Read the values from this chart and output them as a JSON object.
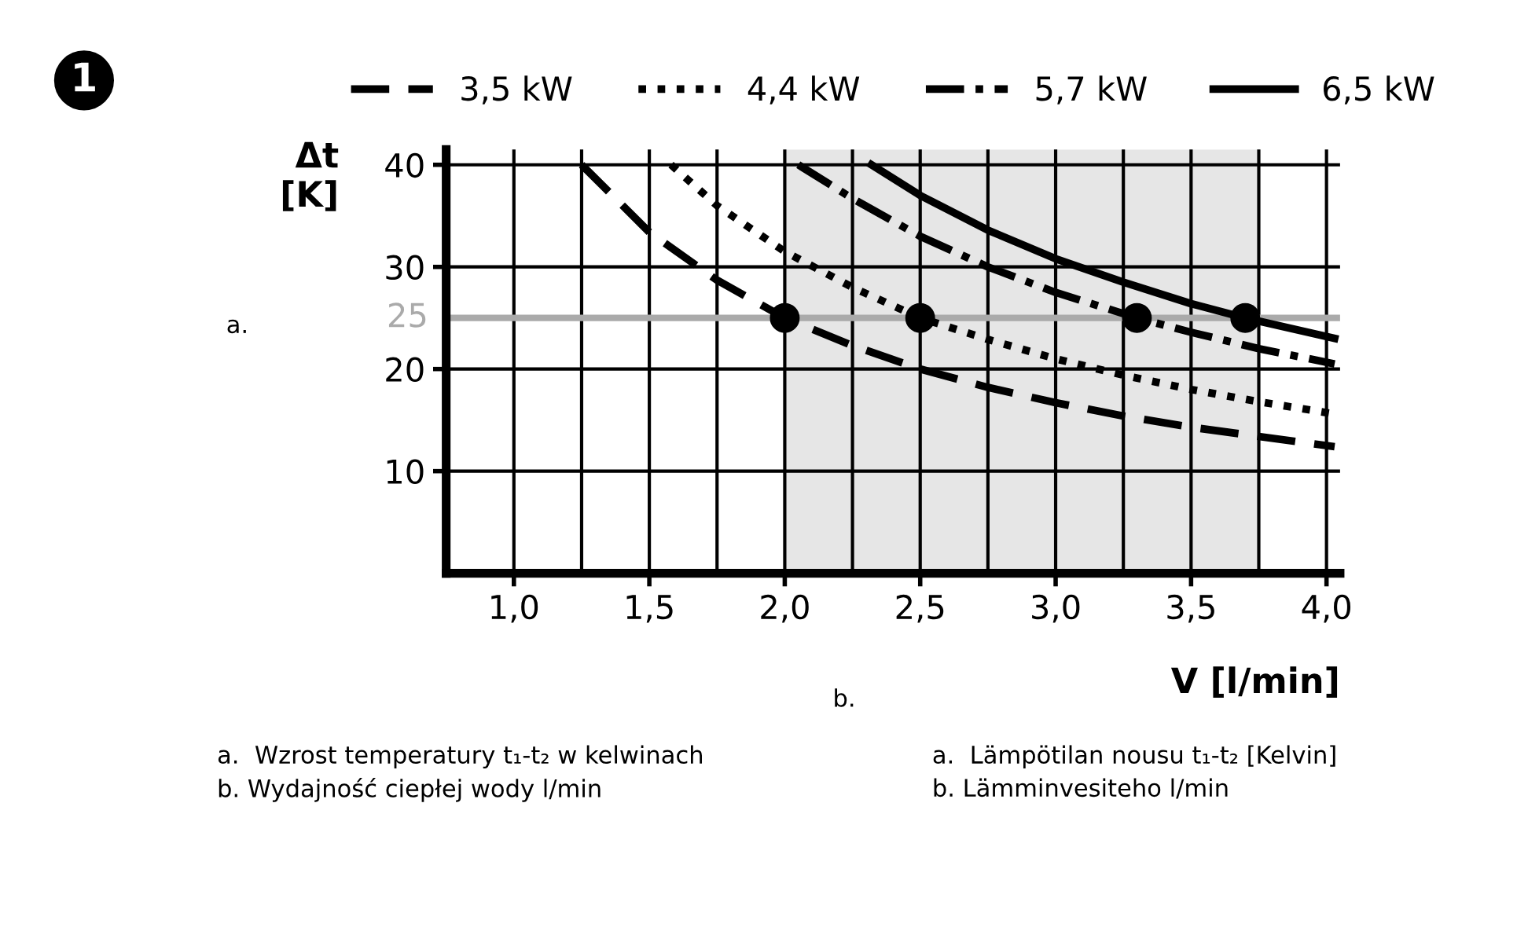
{
  "chart_data": {
    "type": "line",
    "xlabel": "V [l/min]",
    "ylabel": "Δt\n[K]",
    "annotations": [
      "1",
      "a.",
      "b.",
      "a.  Wzrost temperatury t₁-t₂ w kelwinach",
      "b. Wydajność ciepłej wody l/min",
      "a.  Lämpötilan nousu t₁-t₂ [Kelvin]",
      "b. Lämminvesiteho l/min"
    ],
    "series": [
      {
        "name": "3,5 kW",
        "color": "#000000",
        "line_style": "dashed",
        "x": [
          1.25,
          1.5,
          1.75,
          2.0,
          2.25,
          2.5,
          2.75,
          3.0,
          3.25,
          3.5,
          3.75,
          4.03
        ],
        "values": [
          40,
          33.4,
          28.7,
          25,
          22.3,
          20,
          18.2,
          16.7,
          15.4,
          14.3,
          13.4,
          12.4
        ]
      },
      {
        "name": "4,4 kW",
        "color": "#000000",
        "line_style": "dotted",
        "x": [
          1.58,
          1.75,
          2.0,
          2.25,
          2.5,
          2.75,
          3.0,
          3.25,
          3.5,
          3.75,
          4.03
        ],
        "values": [
          40,
          36,
          31.5,
          28,
          25,
          22.9,
          21,
          19.4,
          18,
          16.8,
          15.6
        ]
      },
      {
        "name": "5,7 kW",
        "color": "#000000",
        "line_style": "dashdot",
        "x": [
          2.05,
          2.25,
          2.5,
          2.75,
          3.0,
          3.3,
          3.5,
          3.75,
          4.03
        ],
        "values": [
          40,
          36.7,
          33,
          30,
          27.5,
          25,
          23.6,
          22,
          20.5
        ]
      },
      {
        "name": "6,5 kW",
        "color": "#000000",
        "line_style": "solid",
        "x": [
          2.32,
          2.5,
          2.75,
          3.0,
          3.25,
          3.5,
          3.7,
          4.03
        ],
        "values": [
          40,
          37,
          33.6,
          30.8,
          28.5,
          26.4,
          25,
          23
        ]
      },
      {
        "type": "scatter",
        "color": "#000000",
        "marker": "circle",
        "x": [
          2.0,
          2.5,
          3.3,
          3.7
        ],
        "values": [
          25,
          25,
          25,
          25
        ]
      }
    ],
    "xlim": [
      0.75,
      4.05
    ],
    "ylim": [
      0,
      41.5
    ],
    "xticks": [
      {
        "value": 1.0,
        "label": "1,0"
      },
      {
        "value": 1.25,
        "label": null
      },
      {
        "value": 1.5,
        "label": "1,5"
      },
      {
        "value": 1.75,
        "label": null
      },
      {
        "value": 2.0,
        "label": "2,0"
      },
      {
        "value": 2.25,
        "label": null
      },
      {
        "value": 2.5,
        "label": "2,5"
      },
      {
        "value": 2.75,
        "label": null
      },
      {
        "value": 3.0,
        "label": "3,0"
      },
      {
        "value": 3.25,
        "label": null
      },
      {
        "value": 3.5,
        "label": "3,5"
      },
      {
        "value": 3.75,
        "label": null
      },
      {
        "value": 4.0,
        "label": "4,0"
      }
    ],
    "yticks": [
      10,
      20,
      30,
      40
    ],
    "ref_lines": [
      {
        "axis": "y",
        "value": 25,
        "label": "25",
        "color": "#aaaaaa"
      }
    ],
    "bands": [
      {
        "axis": "x",
        "from": 2.0,
        "to": 3.75,
        "color": "#e6e6e6"
      }
    ],
    "grid": true,
    "legend": "top",
    "marker": "none"
  }
}
